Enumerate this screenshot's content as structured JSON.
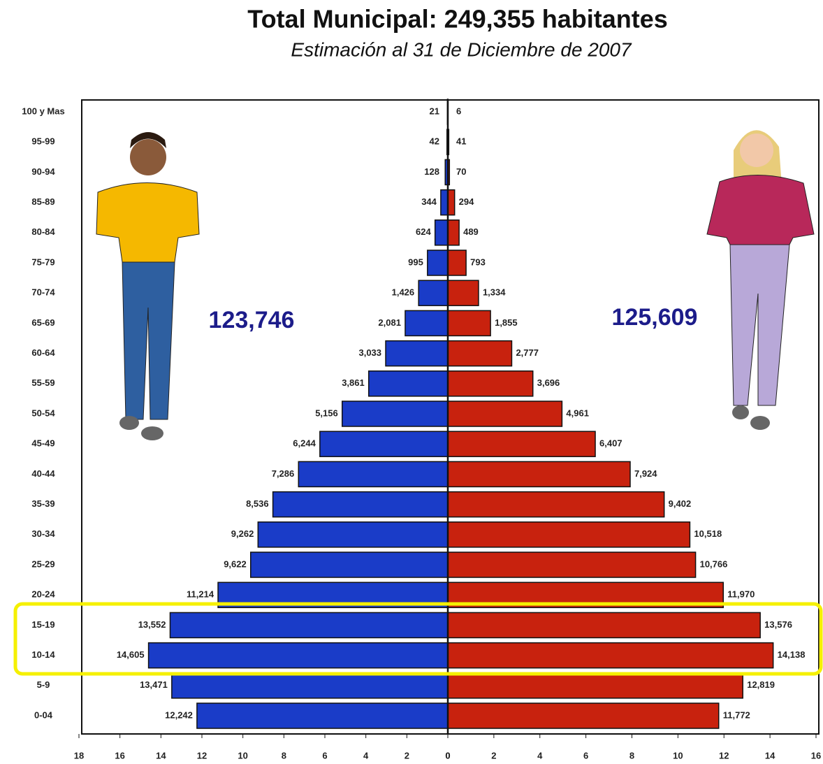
{
  "chart_data": {
    "type": "bar",
    "title": "Total Municipal: 249,355 habitantes",
    "subtitle": "Estimación al 31 de Diciembre de 2007",
    "categories": [
      "100 y Mas",
      "95-99",
      "90-94",
      "85-89",
      "80-84",
      "75-79",
      "70-74",
      "65-69",
      "60-64",
      "55-59",
      "50-54",
      "45-49",
      "40-44",
      "35-39",
      "30-34",
      "25-29",
      "20-24",
      "15-19",
      "10-14",
      "5-9",
      "0-04"
    ],
    "annotations": [
      "123,746",
      "125,609"
    ],
    "series": [
      {
        "color": "#1a3cc8",
        "side": "left",
        "values": [
          0.021,
          0.042,
          0.128,
          0.344,
          0.624,
          0.995,
          1.426,
          2.081,
          3.033,
          3.861,
          5.156,
          6.244,
          7.286,
          8.536,
          9.262,
          9.622,
          11.214,
          13.552,
          14.605,
          13.471,
          12.242
        ],
        "value_labels": [
          "21",
          "42",
          "128",
          "344",
          "624",
          "995",
          "1,426",
          "2,081",
          "3,033",
          "3,861",
          "5,156",
          "6,244",
          "7,286",
          "8,536",
          "9,262",
          "9,622",
          "11,214",
          "13,552",
          "14,605",
          "13,471",
          "12,242"
        ],
        "xlim": [
          0,
          18
        ],
        "xticks": [
          18,
          16,
          14,
          12,
          10,
          8,
          6,
          4,
          2,
          0
        ]
      },
      {
        "color": "#c8220e",
        "side": "right",
        "values": [
          0.006,
          0.041,
          0.07,
          0.294,
          0.489,
          0.793,
          1.334,
          1.855,
          2.777,
          3.696,
          4.961,
          6.407,
          7.924,
          9.402,
          10.518,
          10.766,
          11.97,
          13.576,
          14.138,
          12.819,
          11.772
        ],
        "value_labels": [
          "6",
          "41",
          "70",
          "294",
          "489",
          "793",
          "1,334",
          "1,855",
          "2,777",
          "3,696",
          "4,961",
          "6,407",
          "7,924",
          "9,402",
          "10,518",
          "10,766",
          "11,970",
          "13,576",
          "14,138",
          "12,819",
          "11,772"
        ],
        "xlim": [
          0,
          16
        ],
        "xticks": [
          0,
          2,
          4,
          6,
          8,
          10,
          12,
          14,
          16
        ]
      }
    ]
  }
}
